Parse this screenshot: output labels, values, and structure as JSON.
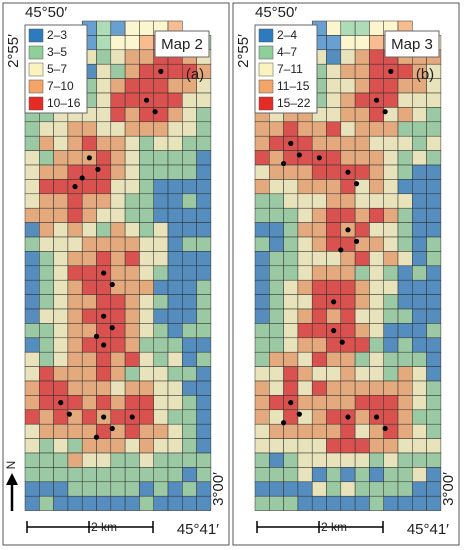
{
  "panels": [
    {
      "title": "Map 2",
      "label": "(a)",
      "legend": [
        {
          "range": "2–3",
          "color": "#2c7bbf"
        },
        {
          "range": "3–5",
          "color": "#8fcf9a"
        },
        {
          "range": "5–7",
          "color": "#fbf3bd"
        },
        {
          "range": "7–10",
          "color": "#f4a466"
        },
        {
          "range": "10–16",
          "color": "#e62a26"
        }
      ]
    },
    {
      "title": "Map 3",
      "label": "(b)",
      "legend": [
        {
          "range": "2–4",
          "color": "#2c7bbf"
        },
        {
          "range": "4–7",
          "color": "#8fcf9a"
        },
        {
          "range": "7–11",
          "color": "#fbf3bd"
        },
        {
          "range": "11–15",
          "color": "#f4a466"
        },
        {
          "range": "15–22",
          "color": "#e62a26"
        }
      ]
    }
  ],
  "coords": {
    "top_lon": "45°50′",
    "left_lat": "2°55′",
    "bottom_lat": "3°00′",
    "bottom_lon": "45°41′"
  },
  "scale": "2 km",
  "north": "N"
}
